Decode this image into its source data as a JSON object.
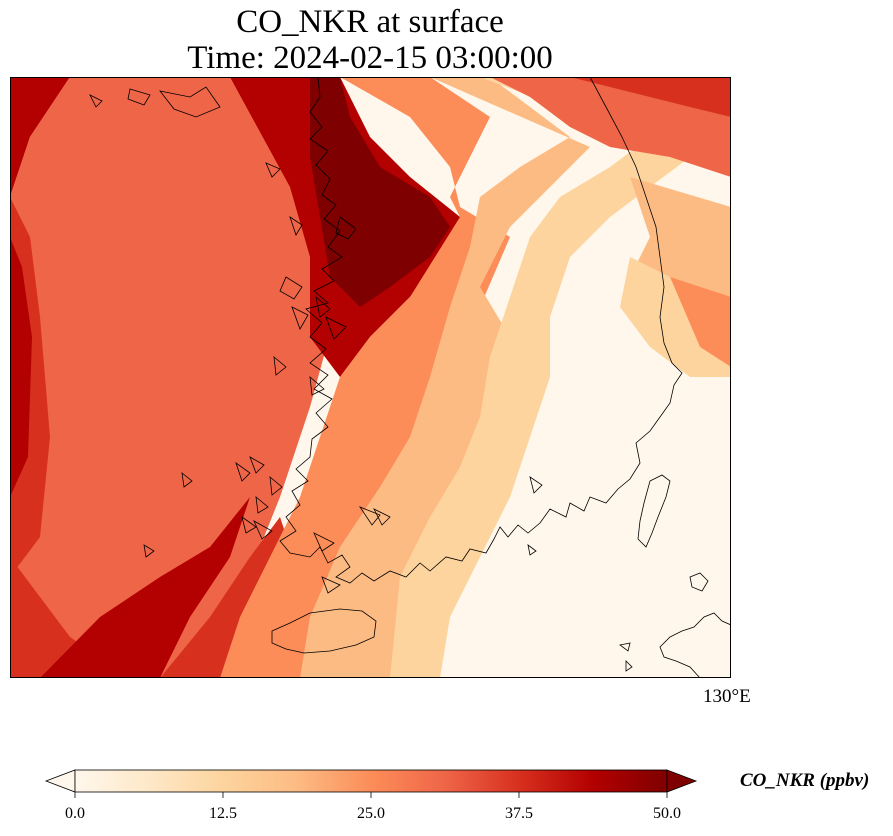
{
  "title_line1": "CO_NKR at surface",
  "title_line2": "Time: 2024-02-15 03:00:00",
  "map": {
    "lon_tick_label": "130°E",
    "variable": "CO_NKR",
    "level": "surface"
  },
  "colorbar": {
    "label": "CO_NKR (ppbv)",
    "min": 0.0,
    "max": 50.0,
    "ticks": [
      "0.0",
      "12.5",
      "25.0",
      "37.5",
      "50.0"
    ],
    "extend": "both",
    "colormap": "OrRd",
    "colors": [
      "#fff7ec",
      "#fee8c8",
      "#fdd49e",
      "#fdbb84",
      "#fc8d59",
      "#ef6548",
      "#d7301f",
      "#b30000",
      "#7f0000"
    ]
  },
  "colors": {
    "coastline": "#000000",
    "background": "#ffffff"
  }
}
